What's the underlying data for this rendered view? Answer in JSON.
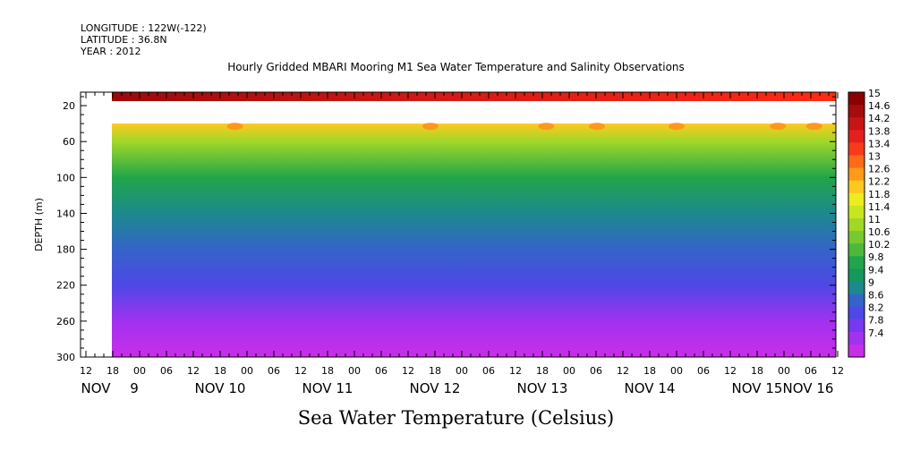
{
  "meta": {
    "longitude": "LONGITUDE : 122W(-122)",
    "latitude": "LATITUDE : 36.8N",
    "year": "YEAR : 2012"
  },
  "chart_data": {
    "type": "heatmap",
    "title": "Hourly Gridded MBARI Mooring M1 Sea Water Temperature and Salinity Observations",
    "footer": "Sea Water Temperature (Celsius)",
    "ylabel": "DEPTH (m)",
    "y_ticks": [
      20,
      60,
      100,
      140,
      180,
      220,
      260,
      300
    ],
    "y_reversed": true,
    "ylim": [
      300,
      5
    ],
    "x_start_hour": "12",
    "x_hour_ticks": [
      "12",
      "18",
      "00",
      "06",
      "12",
      "18",
      "00",
      "06",
      "12",
      "18",
      "00",
      "06",
      "12",
      "18",
      "00",
      "06",
      "12",
      "18",
      "00",
      "06",
      "12",
      "18",
      "00",
      "06",
      "12",
      "18",
      "00",
      "06",
      "12"
    ],
    "x_day_labels": [
      "NOV 9",
      "NOV 10",
      "NOV 11",
      "NOV 12",
      "NOV 13",
      "NOV 14",
      "NOV 15",
      "NOV 16"
    ],
    "x_day_label_nov": "NOV",
    "data_gap_depth_range": [
      15,
      40
    ],
    "data_start": "NOV 8 18",
    "colorbar": {
      "ticks": [
        "15",
        "14.6",
        "14.2",
        "13.8",
        "13.4",
        "13",
        "12.6",
        "12.2",
        "11.8",
        "11.4",
        "11",
        "10.6",
        "10.2",
        "9.8",
        "9.4",
        "9",
        "8.6",
        "8.2",
        "7.8",
        "7.4"
      ],
      "colors": [
        "#8b0000",
        "#a50d0d",
        "#c81414",
        "#e32020",
        "#f73b1a",
        "#ff6a18",
        "#ff9a1a",
        "#ffc81e",
        "#ecec1e",
        "#c8e61e",
        "#a0d828",
        "#78c830",
        "#4cb83c",
        "#22a54a",
        "#14985c",
        "#1c8a8c",
        "#3464c8",
        "#4d48e6",
        "#7838f0",
        "#a032f0",
        "#c82ee8"
      ]
    },
    "temperature_profile": [
      {
        "depth": 10,
        "value": 14.5
      },
      {
        "depth": 40,
        "value": 12.2
      },
      {
        "depth": 60,
        "value": 11.2
      },
      {
        "depth": 100,
        "value": 10.2
      },
      {
        "depth": 140,
        "value": 9.5
      },
      {
        "depth": 180,
        "value": 9.0
      },
      {
        "depth": 220,
        "value": 8.6
      },
      {
        "depth": 260,
        "value": 8.1
      },
      {
        "depth": 300,
        "value": 7.6
      }
    ]
  }
}
